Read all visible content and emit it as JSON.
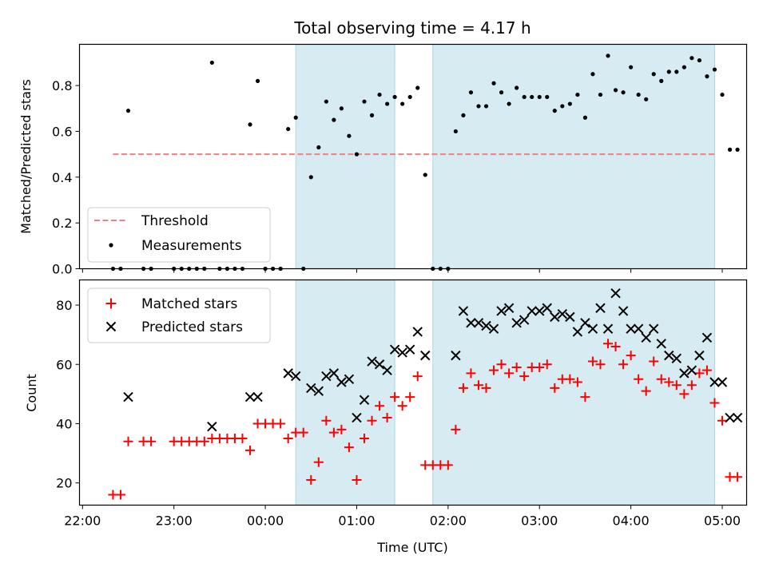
{
  "chart_data": {
    "type": "scatter",
    "title": "Total observing time = 4.17 h",
    "xlabel": "Time (UTC)",
    "colors": {
      "threshold": "#f08080",
      "measurement": "#000000",
      "matched": "#ff0000",
      "predicted": "#000000",
      "shade": "#add8e6"
    },
    "xlim": [
      "21:58",
      "05:16"
    ],
    "x_ticks": [
      "22:00",
      "23:00",
      "00:00",
      "01:00",
      "02:00",
      "03:00",
      "04:00",
      "05:00"
    ],
    "shaded_intervals": [
      [
        "00:20",
        "01:25"
      ],
      [
        "01:50",
        "04:55"
      ]
    ],
    "top": {
      "ylabel": "Matched/Predicted stars",
      "ylim": [
        0,
        0.98
      ],
      "y_ticks": [
        "0.0",
        "0.2",
        "0.4",
        "0.6",
        "0.8"
      ],
      "threshold": {
        "name": "Threshold",
        "y": 0.5,
        "x_range": [
          "22:20",
          "04:55"
        ]
      },
      "legend": {
        "placement": "lower-left",
        "entries": [
          "Threshold",
          "Measurements"
        ]
      },
      "measurements": {
        "name": "Measurements",
        "points": [
          [
            "22:20",
            0
          ],
          [
            "22:25",
            0
          ],
          [
            "22:30",
            0.69
          ],
          [
            "22:40",
            0
          ],
          [
            "22:45",
            0
          ],
          [
            "23:00",
            0
          ],
          [
            "23:05",
            0
          ],
          [
            "23:10",
            0
          ],
          [
            "23:15",
            0
          ],
          [
            "23:20",
            0
          ],
          [
            "23:25",
            0.9
          ],
          [
            "23:30",
            0
          ],
          [
            "23:35",
            0
          ],
          [
            "23:40",
            0
          ],
          [
            "23:45",
            0
          ],
          [
            "23:50",
            0.63
          ],
          [
            "23:55",
            0.82
          ],
          [
            "00:00",
            0
          ],
          [
            "00:05",
            0
          ],
          [
            "00:10",
            0
          ],
          [
            "00:15",
            0.61
          ],
          [
            "00:20",
            0.66
          ],
          [
            "00:25",
            0
          ],
          [
            "00:30",
            0.4
          ],
          [
            "00:35",
            0.53
          ],
          [
            "00:40",
            0.73
          ],
          [
            "00:45",
            0.65
          ],
          [
            "00:50",
            0.7
          ],
          [
            "00:55",
            0.58
          ],
          [
            "01:00",
            0.5
          ],
          [
            "01:05",
            0.73
          ],
          [
            "01:10",
            0.67
          ],
          [
            "01:15",
            0.76
          ],
          [
            "01:20",
            0.72
          ],
          [
            "01:25",
            0.75
          ],
          [
            "01:30",
            0.72
          ],
          [
            "01:35",
            0.75
          ],
          [
            "01:40",
            0.79
          ],
          [
            "01:45",
            0.41
          ],
          [
            "01:50",
            0
          ],
          [
            "01:55",
            0
          ],
          [
            "02:00",
            0
          ],
          [
            "02:05",
            0.6
          ],
          [
            "02:10",
            0.67
          ],
          [
            "02:15",
            0.77
          ],
          [
            "02:20",
            0.71
          ],
          [
            "02:25",
            0.71
          ],
          [
            "02:30",
            0.81
          ],
          [
            "02:35",
            0.77
          ],
          [
            "02:40",
            0.72
          ],
          [
            "02:45",
            0.79
          ],
          [
            "02:50",
            0.75
          ],
          [
            "02:55",
            0.75
          ],
          [
            "03:00",
            0.75
          ],
          [
            "03:05",
            0.75
          ],
          [
            "03:10",
            0.69
          ],
          [
            "03:15",
            0.71
          ],
          [
            "03:20",
            0.72
          ],
          [
            "03:25",
            0.76
          ],
          [
            "03:30",
            0.66
          ],
          [
            "03:35",
            0.85
          ],
          [
            "03:40",
            0.76
          ],
          [
            "03:45",
            0.93
          ],
          [
            "03:50",
            0.78
          ],
          [
            "03:55",
            0.77
          ],
          [
            "04:00",
            0.88
          ],
          [
            "04:05",
            0.76
          ],
          [
            "04:10",
            0.74
          ],
          [
            "04:15",
            0.85
          ],
          [
            "04:20",
            0.82
          ],
          [
            "04:25",
            0.86
          ],
          [
            "04:30",
            0.86
          ],
          [
            "04:35",
            0.88
          ],
          [
            "04:40",
            0.92
          ],
          [
            "04:45",
            0.91
          ],
          [
            "04:50",
            0.84
          ],
          [
            "04:55",
            0.87
          ],
          [
            "05:00",
            0.76
          ],
          [
            "05:05",
            0.52
          ],
          [
            "05:10",
            0.52
          ]
        ]
      }
    },
    "bottom": {
      "ylabel": "Count",
      "ylim": [
        12.5,
        88.5
      ],
      "y_ticks": [
        "20",
        "40",
        "60",
        "80"
      ],
      "legend": {
        "placement": "upper-left",
        "entries": [
          "Matched stars",
          "Predicted stars"
        ]
      },
      "matched": {
        "name": "Matched stars",
        "points": [
          [
            "22:20",
            16
          ],
          [
            "22:25",
            16
          ],
          [
            "22:30",
            34
          ],
          [
            "22:40",
            34
          ],
          [
            "22:45",
            34
          ],
          [
            "23:00",
            34
          ],
          [
            "23:05",
            34
          ],
          [
            "23:10",
            34
          ],
          [
            "23:15",
            34
          ],
          [
            "23:20",
            34
          ],
          [
            "23:25",
            35
          ],
          [
            "23:30",
            35
          ],
          [
            "23:35",
            35
          ],
          [
            "23:40",
            35
          ],
          [
            "23:45",
            35
          ],
          [
            "23:50",
            31
          ],
          [
            "23:55",
            40
          ],
          [
            "00:00",
            40
          ],
          [
            "00:05",
            40
          ],
          [
            "00:10",
            40
          ],
          [
            "00:15",
            35
          ],
          [
            "00:20",
            37
          ],
          [
            "00:25",
            37
          ],
          [
            "00:30",
            21
          ],
          [
            "00:35",
            27
          ],
          [
            "00:40",
            41
          ],
          [
            "00:45",
            37
          ],
          [
            "00:50",
            38
          ],
          [
            "00:55",
            32
          ],
          [
            "01:00",
            21
          ],
          [
            "01:05",
            35
          ],
          [
            "01:10",
            41
          ],
          [
            "01:15",
            46
          ],
          [
            "01:20",
            42
          ],
          [
            "01:25",
            49
          ],
          [
            "01:30",
            46
          ],
          [
            "01:35",
            49
          ],
          [
            "01:40",
            56
          ],
          [
            "01:45",
            26
          ],
          [
            "01:50",
            26
          ],
          [
            "01:55",
            26
          ],
          [
            "02:00",
            26
          ],
          [
            "02:05",
            38
          ],
          [
            "02:10",
            52
          ],
          [
            "02:15",
            57
          ],
          [
            "02:20",
            53
          ],
          [
            "02:25",
            52
          ],
          [
            "02:30",
            58
          ],
          [
            "02:35",
            60
          ],
          [
            "02:40",
            57
          ],
          [
            "02:45",
            59
          ],
          [
            "02:50",
            56
          ],
          [
            "02:55",
            59
          ],
          [
            "03:00",
            59
          ],
          [
            "03:05",
            60
          ],
          [
            "03:10",
            52
          ],
          [
            "03:15",
            55
          ],
          [
            "03:20",
            55
          ],
          [
            "03:25",
            54
          ],
          [
            "03:30",
            49
          ],
          [
            "03:35",
            61
          ],
          [
            "03:40",
            60
          ],
          [
            "03:45",
            67
          ],
          [
            "03:50",
            66
          ],
          [
            "03:55",
            60
          ],
          [
            "04:00",
            63
          ],
          [
            "04:05",
            55
          ],
          [
            "04:10",
            51
          ],
          [
            "04:15",
            61
          ],
          [
            "04:20",
            55
          ],
          [
            "04:25",
            54
          ],
          [
            "04:30",
            53
          ],
          [
            "04:35",
            50
          ],
          [
            "04:40",
            53
          ],
          [
            "04:45",
            57
          ],
          [
            "04:50",
            58
          ],
          [
            "04:55",
            47
          ],
          [
            "05:00",
            41
          ],
          [
            "05:05",
            22
          ],
          [
            "05:10",
            22
          ]
        ]
      },
      "predicted": {
        "name": "Predicted stars",
        "points": [
          [
            "22:30",
            49
          ],
          [
            "23:25",
            39
          ],
          [
            "23:50",
            49
          ],
          [
            "23:55",
            49
          ],
          [
            "00:15",
            57
          ],
          [
            "00:20",
            56
          ],
          [
            "00:30",
            52
          ],
          [
            "00:35",
            51
          ],
          [
            "00:40",
            56
          ],
          [
            "00:45",
            57
          ],
          [
            "00:50",
            54
          ],
          [
            "00:55",
            55
          ],
          [
            "01:00",
            42
          ],
          [
            "01:05",
            48
          ],
          [
            "01:10",
            61
          ],
          [
            "01:15",
            60
          ],
          [
            "01:20",
            58
          ],
          [
            "01:25",
            65
          ],
          [
            "01:30",
            64
          ],
          [
            "01:35",
            65
          ],
          [
            "01:40",
            71
          ],
          [
            "01:45",
            63
          ],
          [
            "02:05",
            63
          ],
          [
            "02:10",
            78
          ],
          [
            "02:15",
            74
          ],
          [
            "02:20",
            74
          ],
          [
            "02:25",
            73
          ],
          [
            "02:30",
            72
          ],
          [
            "02:35",
            78
          ],
          [
            "02:40",
            79
          ],
          [
            "02:45",
            74
          ],
          [
            "02:50",
            75
          ],
          [
            "02:55",
            78
          ],
          [
            "03:00",
            78
          ],
          [
            "03:05",
            79
          ],
          [
            "03:10",
            76
          ],
          [
            "03:15",
            77
          ],
          [
            "03:20",
            76
          ],
          [
            "03:25",
            71
          ],
          [
            "03:30",
            74
          ],
          [
            "03:35",
            72
          ],
          [
            "03:40",
            79
          ],
          [
            "03:45",
            72
          ],
          [
            "03:50",
            84
          ],
          [
            "03:55",
            78
          ],
          [
            "04:00",
            72
          ],
          [
            "04:05",
            72
          ],
          [
            "04:10",
            69
          ],
          [
            "04:15",
            72
          ],
          [
            "04:20",
            67
          ],
          [
            "04:25",
            63
          ],
          [
            "04:30",
            62
          ],
          [
            "04:35",
            57
          ],
          [
            "04:40",
            58
          ],
          [
            "04:45",
            63
          ],
          [
            "04:50",
            69
          ],
          [
            "04:55",
            54
          ],
          [
            "05:00",
            54
          ],
          [
            "05:05",
            42
          ],
          [
            "05:10",
            42
          ]
        ]
      }
    }
  }
}
